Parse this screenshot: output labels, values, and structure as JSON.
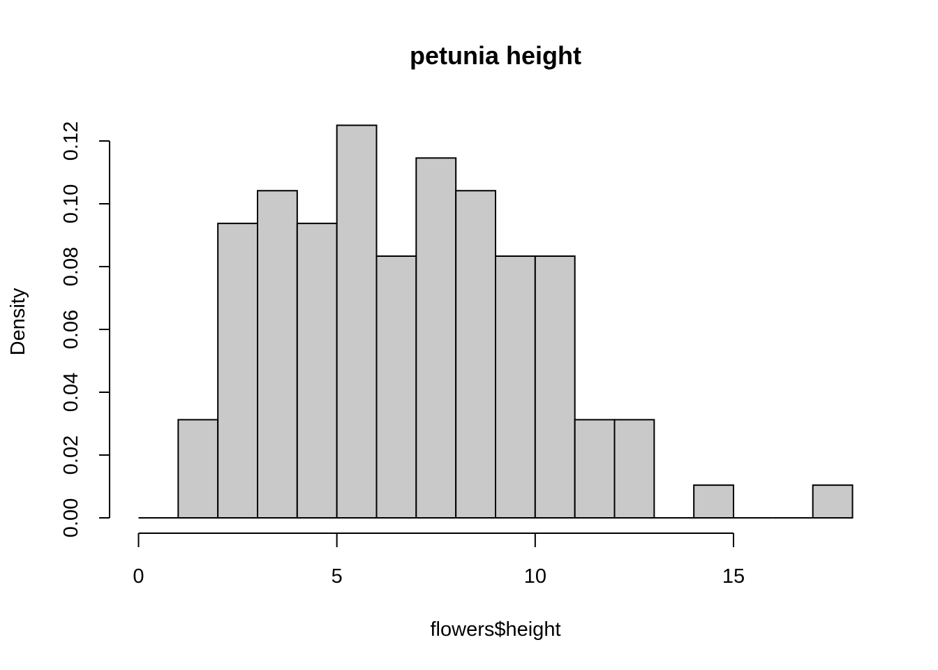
{
  "chart_data": {
    "type": "bar",
    "title": "petunia height",
    "xlabel": "flowers$height",
    "ylabel": "Density",
    "bin_edges": [
      0,
      1,
      2,
      3,
      4,
      5,
      6,
      7,
      8,
      9,
      10,
      11,
      12,
      13,
      14,
      15,
      16,
      17,
      18
    ],
    "values": [
      0,
      0.03125,
      0.09375,
      0.104167,
      0.09375,
      0.125,
      0.083333,
      0.114583,
      0.104167,
      0.083333,
      0.083333,
      0.03125,
      0.03125,
      0,
      0.010417,
      0,
      0,
      0.010417
    ],
    "xlim": [
      0,
      18
    ],
    "ylim": [
      0,
      0.12
    ],
    "x_ticks": [
      0,
      5,
      10,
      15
    ],
    "x_tick_labels": [
      "0",
      "5",
      "10",
      "15"
    ],
    "y_ticks": [
      0,
      0.02,
      0.04,
      0.06,
      0.08,
      0.1,
      0.12
    ],
    "y_tick_labels": [
      "0.00",
      "0.02",
      "0.04",
      "0.06",
      "0.08",
      "0.10",
      "0.12"
    ],
    "grid": false,
    "legend": "none",
    "bar_color": "#c9c9c9",
    "edge_color": "#000000"
  }
}
